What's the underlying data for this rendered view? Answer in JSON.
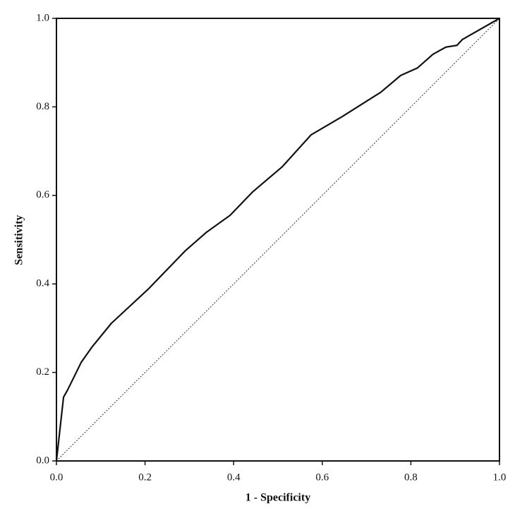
{
  "chart_data": {
    "type": "line",
    "x_label": "1 - Specificity",
    "y_label": "Sensitivity",
    "series": [
      {
        "color": "#111111",
        "x": [
          0,
          0.016,
          0.025,
          0.056,
          0.08,
          0.124,
          0.207,
          0.291,
          0.339,
          0.392,
          0.443,
          0.51,
          0.575,
          0.645,
          0.732,
          0.777,
          0.815,
          0.85,
          0.879,
          0.904,
          0.916,
          1
        ],
        "values": [
          0,
          0.144,
          0.16,
          0.223,
          0.257,
          0.311,
          0.388,
          0.475,
          0.517,
          0.555,
          0.608,
          0.665,
          0.737,
          0.778,
          0.833,
          0.871,
          0.888,
          0.919,
          0.935,
          0.939,
          0.952,
          1
        ]
      }
    ],
    "xlim": [
      0,
      1
    ],
    "ylim": [
      0,
      1
    ],
    "xticks": [
      {
        "value": 0,
        "label": "0.0"
      },
      0.2,
      0.4,
      0.6,
      0.8,
      {
        "value": 1,
        "label": "1.0"
      }
    ],
    "yticks": [
      {
        "value": 0,
        "label": "0.0"
      },
      0.2,
      0.4,
      0.6,
      0.8,
      {
        "value": 1,
        "label": "1.0"
      }
    ],
    "diagonal_reference": true
  }
}
